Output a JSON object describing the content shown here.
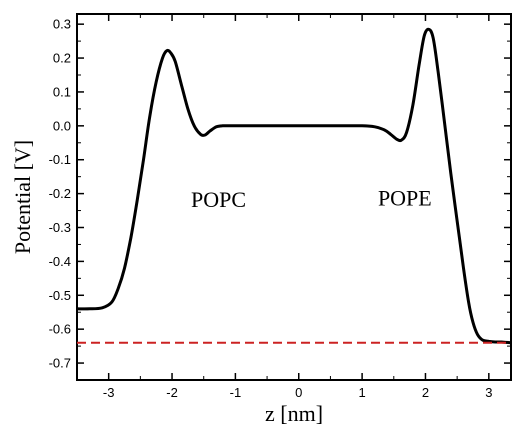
{
  "chart_data": {
    "type": "line",
    "title": "",
    "xlabel": "z [nm]",
    "ylabel": "Potential [V]",
    "xlim": [
      -3.5,
      3.35
    ],
    "ylim": [
      -0.75,
      0.33
    ],
    "xticks": [
      -3,
      -2,
      -1,
      0,
      1,
      2,
      3
    ],
    "xtick_labels": [
      "-3",
      "-2",
      "-1",
      "0",
      "1",
      "2",
      "3"
    ],
    "yticks": [
      0.3,
      0.2,
      0.1,
      0.0,
      -0.1,
      -0.2,
      -0.3,
      -0.4,
      -0.5,
      -0.6,
      -0.7
    ],
    "ytick_labels": [
      "0.3",
      "0.2",
      "0.1",
      "0.0",
      "-0.1",
      "-0.2",
      "-0.3",
      "-0.4",
      "-0.5",
      "-0.6",
      "-0.7"
    ],
    "grid": false,
    "annotations": [
      {
        "text": "POPC",
        "x": -1.7,
        "y": -0.24
      },
      {
        "text": "POPE",
        "x": 1.25,
        "y": -0.235
      }
    ],
    "series": [
      {
        "style": "solid",
        "color": "#000000",
        "x": [
          -3.5,
          -3.3,
          -3.1,
          -2.95,
          -2.85,
          -2.75,
          -2.65,
          -2.55,
          -2.45,
          -2.35,
          -2.25,
          -2.15,
          -2.08,
          -2.02,
          -1.95,
          -1.85,
          -1.75,
          -1.65,
          -1.55,
          -1.48,
          -1.4,
          -1.3,
          -1.2,
          -1.0,
          -0.5,
          0.0,
          0.5,
          1.0,
          1.2,
          1.35,
          1.45,
          1.55,
          1.62,
          1.7,
          1.8,
          1.9,
          1.98,
          2.05,
          2.12,
          2.2,
          2.3,
          2.4,
          2.5,
          2.6,
          2.68,
          2.75,
          2.82,
          2.9,
          3.0,
          3.1,
          3.2,
          3.35
        ],
        "y": [
          -0.54,
          -0.54,
          -0.537,
          -0.52,
          -0.48,
          -0.42,
          -0.33,
          -0.22,
          -0.1,
          0.03,
          0.13,
          0.2,
          0.222,
          0.215,
          0.19,
          0.12,
          0.05,
          0.0,
          -0.025,
          -0.027,
          -0.015,
          -0.003,
          0.0,
          0.0,
          0.0,
          0.0,
          0.0,
          0.0,
          -0.003,
          -0.012,
          -0.025,
          -0.04,
          -0.042,
          -0.02,
          0.06,
          0.18,
          0.265,
          0.285,
          0.26,
          0.16,
          0.01,
          -0.14,
          -0.28,
          -0.42,
          -0.52,
          -0.58,
          -0.615,
          -0.632,
          -0.636,
          -0.638,
          -0.638,
          -0.64
        ]
      },
      {
        "style": "dashed",
        "color": "#cc2222",
        "x": [
          -3.5,
          3.35
        ],
        "y": [
          -0.64,
          -0.64
        ]
      }
    ]
  }
}
